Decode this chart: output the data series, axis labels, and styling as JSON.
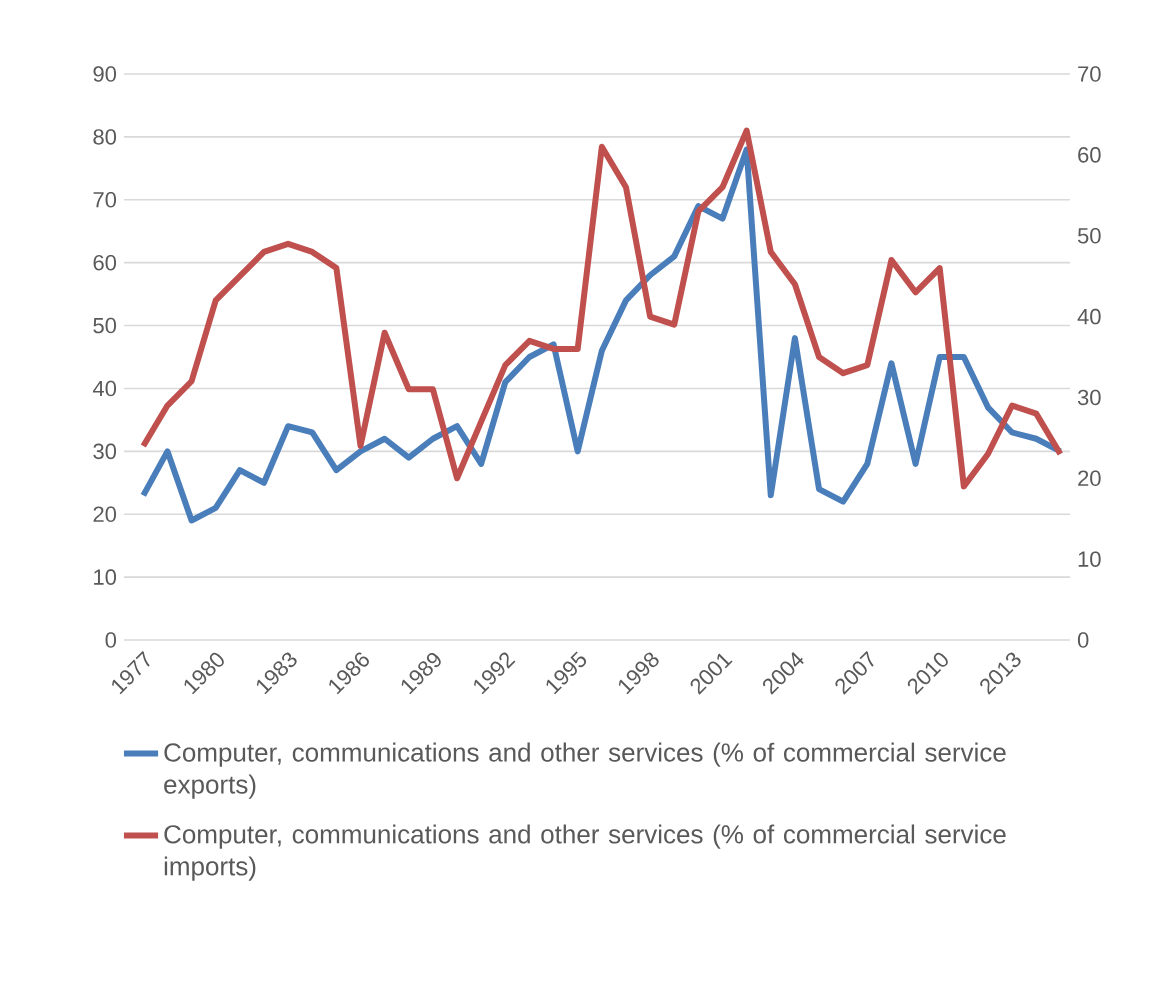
{
  "chart_data": {
    "type": "line",
    "categories": [
      "1977",
      null,
      null,
      "1980",
      null,
      null,
      "1983",
      null,
      null,
      "1986",
      null,
      null,
      "1989",
      null,
      null,
      "1992",
      null,
      null,
      "1995",
      null,
      null,
      "1998",
      null,
      null,
      "2001",
      null,
      null,
      "2004",
      null,
      null,
      "2007",
      null,
      null,
      "2010",
      null,
      null,
      "2013",
      null,
      null
    ],
    "series": [
      {
        "name": "Computer, communications and other services (% of commercial service exports)",
        "color": "#4a7ebb",
        "axis": "y",
        "values": [
          23,
          30,
          19,
          21,
          27,
          25,
          34,
          33,
          27,
          30,
          32,
          29,
          32,
          34,
          28,
          41,
          45,
          47,
          30,
          46,
          54,
          58,
          61,
          69,
          67,
          78,
          23,
          48,
          24,
          22,
          28,
          44,
          28,
          45,
          45,
          37,
          33,
          32,
          30
        ]
      },
      {
        "name": "Computer, communications and other services (% of commercial service imports)",
        "color": "#c0504d",
        "axis": "y2",
        "values": [
          24,
          29,
          32,
          42,
          45,
          48,
          49,
          48,
          46,
          24,
          38,
          31,
          31,
          20,
          27,
          34,
          37,
          36,
          36,
          61,
          56,
          40,
          39,
          53,
          56,
          63,
          48,
          44,
          35,
          33,
          34,
          47,
          43,
          46,
          19,
          23,
          29,
          28,
          23
        ]
      }
    ],
    "ylim": [
      0,
      90
    ],
    "yticks": [
      0,
      10,
      20,
      30,
      40,
      50,
      60,
      70,
      80,
      90
    ],
    "y2lim": [
      0,
      70
    ],
    "y2ticks": [
      0,
      10,
      20,
      30,
      40,
      50,
      60,
      70
    ],
    "grid": "y",
    "legend": "bottom"
  }
}
